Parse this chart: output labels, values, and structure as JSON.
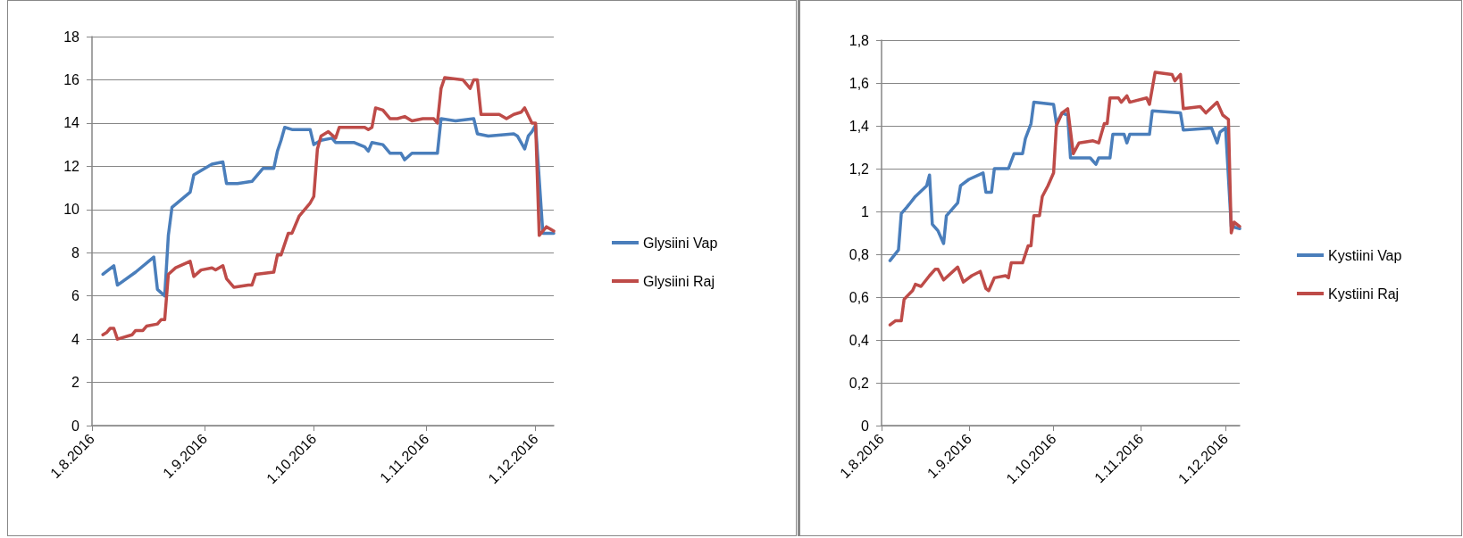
{
  "chart_data": [
    {
      "type": "line",
      "xlim": [
        "2016-08-01",
        "2016-12-06"
      ],
      "ylim": [
        0,
        18
      ],
      "yticks": [
        0,
        2,
        4,
        6,
        8,
        10,
        12,
        14,
        16,
        18
      ],
      "xticks": [
        {
          "value": "2016-08-01",
          "label": "1.8.2016"
        },
        {
          "value": "2016-09-01",
          "label": "1.9.2016"
        },
        {
          "value": "2016-10-01",
          "label": "1.10.2016"
        },
        {
          "value": "2016-11-01",
          "label": "1.11.2016"
        },
        {
          "value": "2016-12-01",
          "label": "1.12.2016"
        }
      ],
      "grid": "y",
      "legend": "right",
      "marker": "none",
      "line_style": "solid",
      "series": [
        {
          "name": "Glysiini Vap",
          "color": "#4a7ebb",
          "x": [
            "2016-08-04",
            "2016-08-07",
            "2016-08-08",
            "2016-08-13",
            "2016-08-18",
            "2016-08-19",
            "2016-08-21",
            "2016-08-22",
            "2016-08-23",
            "2016-08-28",
            "2016-08-29",
            "2016-09-01",
            "2016-09-03",
            "2016-09-06",
            "2016-09-07",
            "2016-09-10",
            "2016-09-14",
            "2016-09-17",
            "2016-09-20",
            "2016-09-21",
            "2016-09-22",
            "2016-09-23",
            "2016-09-25",
            "2016-09-30",
            "2016-10-01",
            "2016-10-03",
            "2016-10-06",
            "2016-10-07",
            "2016-10-12",
            "2016-10-15",
            "2016-10-16",
            "2016-10-17",
            "2016-10-20",
            "2016-10-22",
            "2016-10-25",
            "2016-10-26",
            "2016-10-28",
            "2016-11-04",
            "2016-11-05",
            "2016-11-09",
            "2016-11-14",
            "2016-11-15",
            "2016-11-18",
            "2016-11-25",
            "2016-11-26",
            "2016-11-28",
            "2016-11-29",
            "2016-11-30",
            "2016-12-01",
            "2016-12-03",
            "2016-12-06"
          ],
          "values": [
            7.0,
            7.4,
            6.5,
            7.1,
            7.8,
            6.3,
            6.0,
            8.8,
            10.1,
            10.8,
            11.6,
            11.9,
            12.1,
            12.2,
            11.2,
            11.2,
            11.3,
            11.9,
            11.9,
            12.7,
            13.2,
            13.8,
            13.7,
            13.7,
            13.0,
            13.2,
            13.3,
            13.1,
            13.1,
            12.9,
            12.7,
            13.1,
            13.0,
            12.6,
            12.6,
            12.3,
            12.6,
            12.6,
            14.2,
            14.1,
            14.2,
            13.5,
            13.4,
            13.5,
            13.4,
            12.8,
            13.4,
            13.6,
            13.9,
            8.9,
            8.9
          ]
        },
        {
          "name": "Glysiini Raj",
          "color": "#be4b48",
          "x": [
            "2016-08-04",
            "2016-08-05",
            "2016-08-06",
            "2016-08-07",
            "2016-08-08",
            "2016-08-12",
            "2016-08-13",
            "2016-08-15",
            "2016-08-16",
            "2016-08-19",
            "2016-08-20",
            "2016-08-21",
            "2016-08-22",
            "2016-08-24",
            "2016-08-28",
            "2016-08-29",
            "2016-08-31",
            "2016-09-03",
            "2016-09-04",
            "2016-09-06",
            "2016-09-07",
            "2016-09-09",
            "2016-09-13",
            "2016-09-14",
            "2016-09-15",
            "2016-09-20",
            "2016-09-21",
            "2016-09-22",
            "2016-09-24",
            "2016-09-25",
            "2016-09-27",
            "2016-09-30",
            "2016-10-01",
            "2016-10-02",
            "2016-10-03",
            "2016-10-05",
            "2016-10-07",
            "2016-10-08",
            "2016-10-15",
            "2016-10-16",
            "2016-10-17",
            "2016-10-18",
            "2016-10-20",
            "2016-10-22",
            "2016-10-24",
            "2016-10-26",
            "2016-10-28",
            "2016-10-31",
            "2016-11-03",
            "2016-11-04",
            "2016-11-05",
            "2016-11-06",
            "2016-11-11",
            "2016-11-13",
            "2016-11-14",
            "2016-11-15",
            "2016-11-16",
            "2016-11-21",
            "2016-11-23",
            "2016-11-25",
            "2016-11-27",
            "2016-11-28",
            "2016-11-30",
            "2016-12-01",
            "2016-12-02",
            "2016-12-04",
            "2016-12-06"
          ],
          "values": [
            4.2,
            4.3,
            4.5,
            4.5,
            4.0,
            4.2,
            4.4,
            4.4,
            4.6,
            4.7,
            4.9,
            4.9,
            7.0,
            7.3,
            7.6,
            6.9,
            7.2,
            7.3,
            7.2,
            7.4,
            6.8,
            6.4,
            6.5,
            6.5,
            7.0,
            7.1,
            7.9,
            7.9,
            8.9,
            8.9,
            9.7,
            10.3,
            10.6,
            12.8,
            13.4,
            13.6,
            13.3,
            13.8,
            13.8,
            13.7,
            13.8,
            14.7,
            14.6,
            14.2,
            14.2,
            14.3,
            14.1,
            14.2,
            14.2,
            14.0,
            15.6,
            16.1,
            16.0,
            15.6,
            16.0,
            16.0,
            14.4,
            14.4,
            14.2,
            14.4,
            14.5,
            14.7,
            14.0,
            14.0,
            8.8,
            9.2,
            9.0
          ]
        }
      ]
    },
    {
      "type": "line",
      "xlim": [
        "2016-08-01",
        "2016-12-06"
      ],
      "ylim": [
        0,
        1.8
      ],
      "yticks": [
        0,
        {
          "value": 0.2,
          "label": "0,2"
        },
        {
          "value": 0.4,
          "label": "0,4"
        },
        {
          "value": 0.6,
          "label": "0,6"
        },
        {
          "value": 0.8,
          "label": "0,8"
        },
        1,
        {
          "value": 1.2,
          "label": "1,2"
        },
        {
          "value": 1.4,
          "label": "1,4"
        },
        {
          "value": 1.6,
          "label": "1,6"
        },
        {
          "value": 1.8,
          "label": "1,8"
        }
      ],
      "xticks": [
        {
          "value": "2016-08-01",
          "label": "1.8.2016"
        },
        {
          "value": "2016-09-01",
          "label": "1.9.2016"
        },
        {
          "value": "2016-10-01",
          "label": "1.10.2016"
        },
        {
          "value": "2016-11-01",
          "label": "1.11.2016"
        },
        {
          "value": "2016-12-01",
          "label": "1.12.2016"
        }
      ],
      "grid": "y",
      "legend": "right",
      "marker": "none",
      "line_style": "solid",
      "series": [
        {
          "name": "Kystiini Vap",
          "color": "#4a7ebb",
          "x": [
            "2016-08-04",
            "2016-08-07",
            "2016-08-08",
            "2016-08-10",
            "2016-08-13",
            "2016-08-17",
            "2016-08-18",
            "2016-08-19",
            "2016-08-21",
            "2016-08-23",
            "2016-08-24",
            "2016-08-28",
            "2016-08-29",
            "2016-09-01",
            "2016-09-06",
            "2016-09-07",
            "2016-09-09",
            "2016-09-10",
            "2016-09-15",
            "2016-09-17",
            "2016-09-20",
            "2016-09-21",
            "2016-09-23",
            "2016-09-24",
            "2016-10-01",
            "2016-10-02",
            "2016-10-04",
            "2016-10-06",
            "2016-10-07",
            "2016-10-14",
            "2016-10-16",
            "2016-10-17",
            "2016-10-21",
            "2016-10-22",
            "2016-10-26",
            "2016-10-27",
            "2016-10-28",
            "2016-11-04",
            "2016-11-05",
            "2016-11-15",
            "2016-11-16",
            "2016-11-26",
            "2016-11-28",
            "2016-11-29",
            "2016-12-01",
            "2016-12-03",
            "2016-12-06"
          ],
          "values": [
            0.77,
            0.82,
            0.99,
            1.02,
            1.07,
            1.12,
            1.17,
            0.94,
            0.91,
            0.85,
            0.98,
            1.04,
            1.12,
            1.15,
            1.18,
            1.09,
            1.09,
            1.2,
            1.2,
            1.27,
            1.27,
            1.34,
            1.41,
            1.51,
            1.5,
            1.41,
            1.46,
            1.45,
            1.25,
            1.25,
            1.22,
            1.25,
            1.25,
            1.36,
            1.36,
            1.32,
            1.36,
            1.36,
            1.47,
            1.46,
            1.38,
            1.39,
            1.32,
            1.37,
            1.39,
            0.93,
            0.92
          ]
        },
        {
          "name": "Kystiini Raj",
          "color": "#be4b48",
          "x": [
            "2016-08-04",
            "2016-08-06",
            "2016-08-08",
            "2016-08-09",
            "2016-08-12",
            "2016-08-13",
            "2016-08-15",
            "2016-08-18",
            "2016-08-20",
            "2016-08-21",
            "2016-08-23",
            "2016-08-28",
            "2016-08-30",
            "2016-09-02",
            "2016-09-05",
            "2016-09-07",
            "2016-09-08",
            "2016-09-10",
            "2016-09-14",
            "2016-09-15",
            "2016-09-16",
            "2016-09-20",
            "2016-09-22",
            "2016-09-23",
            "2016-09-24",
            "2016-09-26",
            "2016-09-27",
            "2016-09-29",
            "2016-10-01",
            "2016-10-02",
            "2016-10-04",
            "2016-10-06",
            "2016-10-08",
            "2016-10-10",
            "2016-10-15",
            "2016-10-17",
            "2016-10-19",
            "2016-10-20",
            "2016-10-21",
            "2016-10-24",
            "2016-10-25",
            "2016-10-27",
            "2016-10-28",
            "2016-11-03",
            "2016-11-04",
            "2016-11-06",
            "2016-11-12",
            "2016-11-13",
            "2016-11-15",
            "2016-11-16",
            "2016-11-22",
            "2016-11-24",
            "2016-11-28",
            "2016-11-30",
            "2016-12-02",
            "2016-12-03",
            "2016-12-04",
            "2016-12-06"
          ],
          "values": [
            0.47,
            0.49,
            0.49,
            0.59,
            0.63,
            0.66,
            0.65,
            0.7,
            0.73,
            0.73,
            0.68,
            0.74,
            0.67,
            0.7,
            0.72,
            0.64,
            0.63,
            0.69,
            0.7,
            0.69,
            0.76,
            0.76,
            0.84,
            0.84,
            0.98,
            0.98,
            1.07,
            1.12,
            1.18,
            1.4,
            1.46,
            1.48,
            1.27,
            1.32,
            1.33,
            1.32,
            1.41,
            1.41,
            1.53,
            1.53,
            1.51,
            1.54,
            1.51,
            1.53,
            1.5,
            1.65,
            1.64,
            1.61,
            1.64,
            1.48,
            1.49,
            1.46,
            1.51,
            1.45,
            1.43,
            0.9,
            0.95,
            0.93
          ]
        }
      ]
    }
  ]
}
